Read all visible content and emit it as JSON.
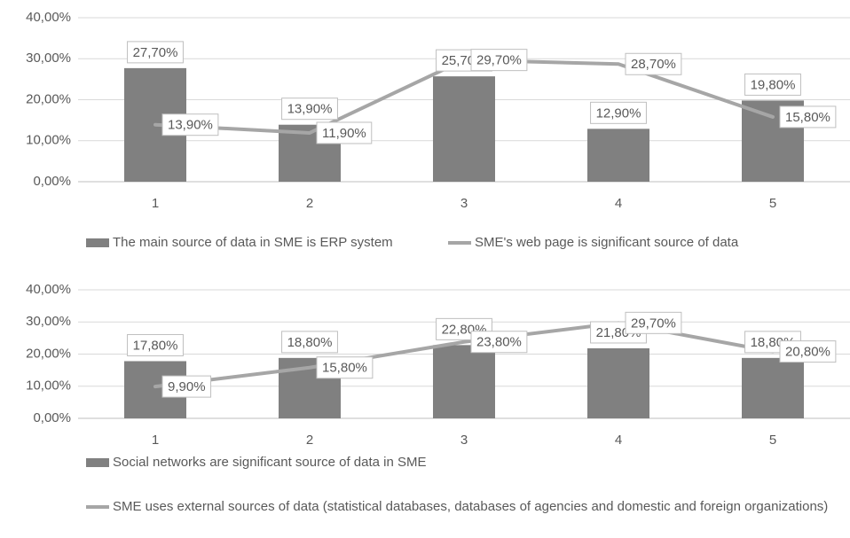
{
  "chart_data": [
    {
      "type": "combo",
      "categories": [
        "1",
        "2",
        "3",
        "4",
        "5"
      ],
      "ylim": [
        0,
        40
      ],
      "yticks": [
        {
          "value": 0,
          "label": "0,00%"
        },
        {
          "value": 10,
          "label": "10,00%"
        },
        {
          "value": 20,
          "label": "20,00%"
        },
        {
          "value": 30,
          "label": "30,00%"
        },
        {
          "value": 40,
          "label": "40,00%"
        }
      ],
      "grid": true,
      "legend": "bottom",
      "series": [
        {
          "name": "The main source of data in SME is ERP system",
          "type": "bar",
          "color": "#808080",
          "values": [
            27.7,
            13.9,
            25.7,
            12.9,
            19.8
          ],
          "value_labels": [
            "27,70%",
            "13,90%",
            "25,70%",
            "12,90%",
            "19,80%"
          ]
        },
        {
          "name": "SME's web page is significant source of data",
          "type": "line",
          "color": "#a6a6a6",
          "values": [
            13.9,
            11.9,
            29.7,
            28.7,
            15.8
          ],
          "value_labels": [
            "13,90%",
            "11,90%",
            "29,70%",
            "28,70%",
            "15,80%"
          ]
        }
      ]
    },
    {
      "type": "combo",
      "categories": [
        "1",
        "2",
        "3",
        "4",
        "5"
      ],
      "ylim": [
        0,
        40
      ],
      "yticks": [
        {
          "value": 0,
          "label": "0,00%"
        },
        {
          "value": 10,
          "label": "10,00%"
        },
        {
          "value": 20,
          "label": "20,00%"
        },
        {
          "value": 30,
          "label": "30,00%"
        },
        {
          "value": 40,
          "label": "40,00%"
        }
      ],
      "grid": true,
      "legend": "bottom",
      "series": [
        {
          "name": "Social networks are significant source of data in SME",
          "type": "bar",
          "color": "#808080",
          "values": [
            17.8,
            18.8,
            22.8,
            21.8,
            18.8
          ],
          "value_labels": [
            "17,80%",
            "18,80%",
            "22,80%",
            "21,80%",
            "18,80%"
          ]
        },
        {
          "name": "SME uses external sources of data (statistical databases, databases of agencies and domestic and foreign organizations)",
          "type": "line",
          "color": "#a6a6a6",
          "values": [
            9.9,
            15.8,
            23.8,
            29.7,
            20.8
          ],
          "value_labels": [
            "9,90%",
            "15,80%",
            "23,80%",
            "29,70%",
            "20,80%"
          ]
        }
      ]
    }
  ]
}
